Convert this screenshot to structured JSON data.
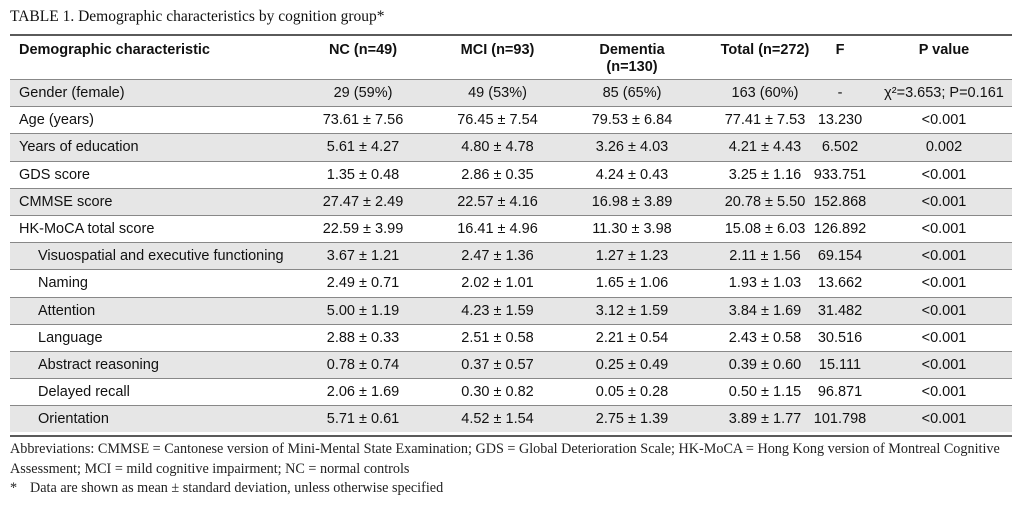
{
  "caption": "TABLE 1. Demographic characteristics by cognition group*",
  "headers": {
    "characteristic": "Demographic characteristic",
    "nc": "NC (n=49)",
    "mci": "MCI (n=93)",
    "dementia_line1": "Dementia",
    "dementia_line2": "(n=130)",
    "total": "Total (n=272)",
    "f": "F",
    "p": "P value"
  },
  "rows": [
    {
      "label": "Gender (female)",
      "nc": "29 (59%)",
      "mci": "49 (53%)",
      "dementia": "85 (65%)",
      "total": "163 (60%)",
      "f": "-",
      "p": "χ²=3.653; P=0.161"
    },
    {
      "label": "Age (years)",
      "nc": "73.61 ± 7.56",
      "mci": "76.45 ± 7.54",
      "dementia": "79.53 ± 6.84",
      "total": "77.41 ± 7.53",
      "f": "13.230",
      "p": "<0.001"
    },
    {
      "label": "Years of education",
      "nc": "5.61 ± 4.27",
      "mci": "4.80 ± 4.78",
      "dementia": "3.26 ± 4.03",
      "total": "4.21 ± 4.43",
      "f": "6.502",
      "p": "0.002"
    },
    {
      "label": "GDS score",
      "nc": "1.35 ± 0.48",
      "mci": "2.86 ± 0.35",
      "dementia": "4.24 ± 0.43",
      "total": "3.25 ± 1.16",
      "f": "933.751",
      "p": "<0.001"
    },
    {
      "label": "CMMSE score",
      "nc": "27.47 ± 2.49",
      "mci": "22.57 ± 4.16",
      "dementia": "16.98 ± 3.89",
      "total": "20.78 ± 5.50",
      "f": "152.868",
      "p": "<0.001"
    },
    {
      "label": "HK-MoCA total score",
      "nc": "22.59 ± 3.99",
      "mci": "16.41 ± 4.96",
      "dementia": "11.30 ± 3.98",
      "total": "15.08 ± 6.03",
      "f": "126.892",
      "p": "<0.001"
    },
    {
      "label": "Visuospatial and executive functioning",
      "nc": "3.67 ± 1.21",
      "mci": "2.47 ± 1.36",
      "dementia": "1.27 ± 1.23",
      "total": "2.11 ± 1.56",
      "f": "69.154",
      "p": "<0.001"
    },
    {
      "label": "Naming",
      "nc": "2.49 ± 0.71",
      "mci": "2.02 ± 1.01",
      "dementia": "1.65 ± 1.06",
      "total": "1.93 ± 1.03",
      "f": "13.662",
      "p": "<0.001"
    },
    {
      "label": "Attention",
      "nc": "5.00 ± 1.19",
      "mci": "4.23 ± 1.59",
      "dementia": "3.12 ± 1.59",
      "total": "3.84 ± 1.69",
      "f": "31.482",
      "p": "<0.001"
    },
    {
      "label": "Language",
      "nc": "2.88 ± 0.33",
      "mci": "2.51 ± 0.58",
      "dementia": "2.21 ± 0.54",
      "total": "2.43 ± 0.58",
      "f": "30.516",
      "p": "<0.001"
    },
    {
      "label": "Abstract reasoning",
      "nc": "0.78 ± 0.74",
      "mci": "0.37 ± 0.57",
      "dementia": "0.25 ± 0.49",
      "total": "0.39 ± 0.60",
      "f": "15.111",
      "p": "<0.001"
    },
    {
      "label": "Delayed recall",
      "nc": "2.06 ± 1.69",
      "mci": "0.30 ± 0.82",
      "dementia": "0.05 ± 0.28",
      "total": "0.50 ± 1.15",
      "f": "96.871",
      "p": "<0.001"
    },
    {
      "label": "Orientation",
      "nc": "5.71 ± 0.61",
      "mci": "4.52 ± 1.54",
      "dementia": "2.75 ± 1.39",
      "total": "3.89 ± 1.77",
      "f": "101.798",
      "p": "<0.001"
    }
  ],
  "footnotes": {
    "abbreviations": "Abbreviations: CMMSE = Cantonese version of Mini-Mental State Examination; GDS = Global Deterioration Scale; HK-MoCA = Hong Kong version of Montreal Cognitive Assessment; MCI = mild cognitive impairment; NC = normal controls",
    "star": "*",
    "note": "Data are shown as mean ± standard deviation, unless otherwise specified"
  }
}
